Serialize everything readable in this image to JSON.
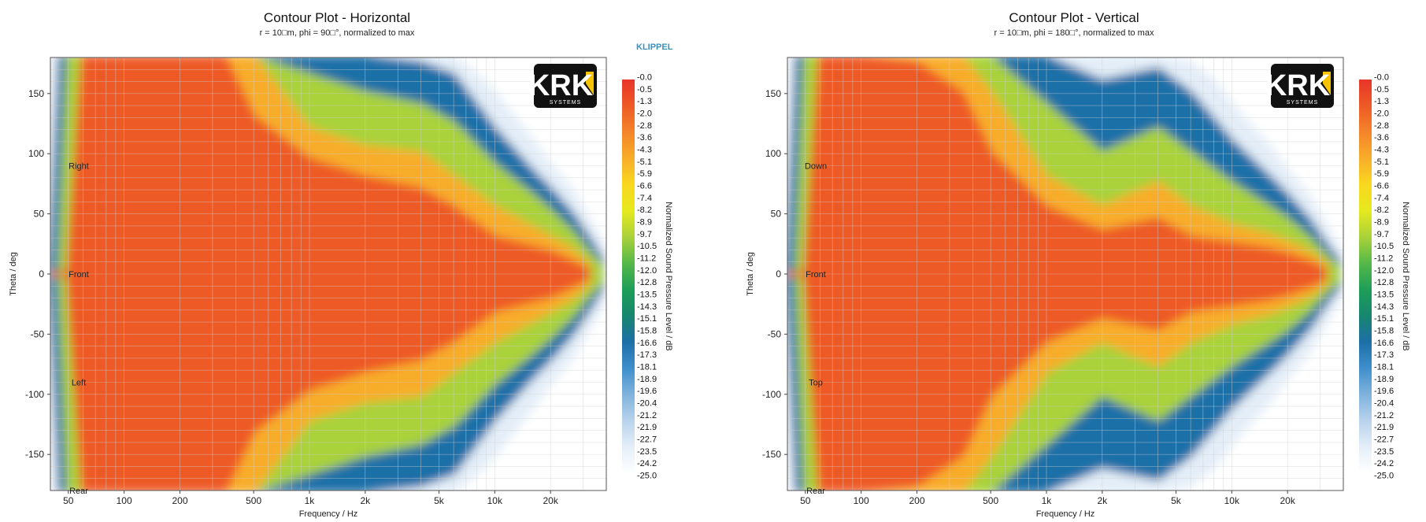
{
  "klippel_label": "KLIPPEL",
  "colors": {
    "scale": [
      "#e8342a",
      "#ee5a26",
      "#f5842a",
      "#f8ad2a",
      "#f9d81f",
      "#e6e81e",
      "#a9d23a",
      "#55b848",
      "#1f9e58",
      "#17866e",
      "#1d6fa8",
      "#3f8fcc",
      "#7fb2dc",
      "#b8d3ec",
      "#e4eef8",
      "#ffffff"
    ]
  },
  "logo": {
    "brand": "KRK",
    "sub": "SYSTEMS"
  },
  "chart_data": [
    {
      "type": "heatmap",
      "title": "Contour Plot - Horizontal",
      "subtitle": "r = 10□m, phi = 90□°, normalized to max",
      "xlabel": "Frequency / Hz",
      "ylabel": "Theta / deg",
      "colorbar_label": "Normalized Sound Pressure Level / dB",
      "x_scale": "log",
      "xlim": [
        40,
        40000
      ],
      "ylim": [
        -180,
        180
      ],
      "x_ticks": [
        50,
        100,
        200,
        500,
        1000,
        2000,
        5000,
        10000,
        20000
      ],
      "x_tick_labels": [
        "50",
        "100",
        "200",
        "500",
        "1k",
        "2k",
        "5k",
        "10k",
        "20k"
      ],
      "y_ticks": [
        150,
        100,
        50,
        0,
        -50,
        -100,
        -150
      ],
      "y_tick_labels": [
        "150",
        "100",
        "50",
        "0",
        "-50",
        "-100",
        "-150"
      ],
      "direction_labels": [
        {
          "text": "Right",
          "theta": 90
        },
        {
          "text": "Front",
          "theta": 0
        },
        {
          "text": "Left",
          "theta": -90
        },
        {
          "text": "Rear",
          "theta": -180
        }
      ],
      "colorbar_ticks": [
        "-0.0",
        "-0.5",
        "-1.3",
        "-2.0",
        "-2.8",
        "-3.6",
        "-4.3",
        "-5.1",
        "-5.9",
        "-6.6",
        "-7.4",
        "-8.2",
        "-8.9",
        "-9.7",
        "-10.5",
        "-11.2",
        "-12.0",
        "-12.8",
        "-13.5",
        "-14.3",
        "-15.1",
        "-15.8",
        "-16.6",
        "-17.3",
        "-18.1",
        "-18.9",
        "-19.6",
        "-20.4",
        "-21.2",
        "-21.9",
        "-22.7",
        "-23.5",
        "-24.2",
        "-25.0"
      ],
      "zlim": [
        -25,
        0
      ],
      "beamwidth_contours": [
        {
          "level": -3,
          "x": [
            40,
            45,
            50,
            60,
            70,
            100,
            200,
            350,
            500,
            1000,
            2000,
            4000,
            6000,
            10000,
            16000,
            20000,
            26000,
            32000
          ],
          "theta_halfwidth": [
            0,
            0,
            0,
            180,
            180,
            180,
            180,
            180,
            130,
            95,
            80,
            70,
            55,
            30,
            22,
            18,
            10,
            3
          ]
        },
        {
          "level": -6,
          "x": [
            40,
            45,
            50,
            60,
            70,
            100,
            200,
            350,
            500,
            1000,
            2000,
            4000,
            6000,
            10000,
            16000,
            20000,
            26000,
            32000
          ],
          "theta_halfwidth": [
            0,
            0,
            0,
            180,
            180,
            180,
            180,
            180,
            180,
            120,
            105,
            100,
            80,
            55,
            38,
            30,
            20,
            8
          ]
        },
        {
          "level": -12,
          "x": [
            40,
            45,
            50,
            60,
            70,
            100,
            200,
            350,
            500,
            1000,
            2000,
            4000,
            6000,
            10000,
            16000,
            20000,
            26000,
            32000,
            38000
          ],
          "theta_halfwidth": [
            0,
            0,
            180,
            180,
            180,
            180,
            180,
            180,
            180,
            165,
            150,
            140,
            125,
            90,
            65,
            52,
            35,
            18,
            6
          ]
        },
        {
          "level": -18,
          "x": [
            40,
            45,
            50,
            60,
            70,
            100,
            200,
            350,
            500,
            1000,
            2000,
            4000,
            6000,
            10000,
            16000,
            20000,
            26000,
            32000,
            38000
          ],
          "theta_halfwidth": [
            0,
            180,
            180,
            180,
            180,
            180,
            180,
            180,
            180,
            180,
            180,
            175,
            165,
            120,
            85,
            70,
            50,
            30,
            12
          ]
        },
        {
          "level": -24,
          "x": [
            40,
            42,
            45,
            50,
            60,
            100,
            200,
            350,
            500,
            1000,
            2000,
            4000,
            6000,
            8000,
            10000,
            16000,
            20000,
            26000,
            32000,
            38000
          ],
          "theta_halfwidth": [
            0,
            180,
            180,
            180,
            180,
            180,
            180,
            180,
            180,
            180,
            180,
            180,
            180,
            165,
            150,
            110,
            90,
            70,
            45,
            25
          ]
        }
      ]
    },
    {
      "type": "heatmap",
      "title": "Contour Plot - Vertical",
      "subtitle": "r = 10□m, phi = 180□°, normalized to max",
      "xlabel": "Frequency / Hz",
      "ylabel": "Theta / deg",
      "colorbar_label": "Normalized Sound Pressure Level / dB",
      "x_scale": "log",
      "xlim": [
        40,
        40000
      ],
      "ylim": [
        -180,
        180
      ],
      "x_ticks": [
        50,
        100,
        200,
        500,
        1000,
        2000,
        5000,
        10000,
        20000
      ],
      "x_tick_labels": [
        "50",
        "100",
        "200",
        "500",
        "1k",
        "2k",
        "5k",
        "10k",
        "20k"
      ],
      "y_ticks": [
        150,
        100,
        50,
        0,
        -50,
        -100,
        -150
      ],
      "y_tick_labels": [
        "150",
        "100",
        "50",
        "0",
        "-50",
        "-100",
        "-150"
      ],
      "direction_labels": [
        {
          "text": "Down",
          "theta": 90
        },
        {
          "text": "Front",
          "theta": 0
        },
        {
          "text": "Top",
          "theta": -90
        },
        {
          "text": "Rear",
          "theta": -180
        }
      ],
      "colorbar_ticks": [
        "-0.0",
        "-0.5",
        "-1.3",
        "-2.0",
        "-2.8",
        "-3.6",
        "-4.3",
        "-5.1",
        "-5.9",
        "-6.6",
        "-7.4",
        "-8.2",
        "-8.9",
        "-9.7",
        "-10.5",
        "-11.2",
        "-12.0",
        "-12.8",
        "-13.5",
        "-14.3",
        "-15.1",
        "-15.8",
        "-16.6",
        "-17.3",
        "-18.1",
        "-18.9",
        "-19.6",
        "-20.4",
        "-21.2",
        "-21.9",
        "-22.7",
        "-23.5",
        "-24.2",
        "-25.0"
      ],
      "zlim": [
        -25,
        0
      ],
      "beamwidth_contours": [
        {
          "level": -3,
          "x": [
            40,
            45,
            50,
            60,
            70,
            100,
            200,
            350,
            500,
            1000,
            2000,
            4000,
            6000,
            10000,
            16000,
            20000,
            26000,
            32000
          ],
          "theta_halfwidth": [
            0,
            0,
            0,
            180,
            180,
            180,
            175,
            150,
            100,
            55,
            35,
            45,
            30,
            25,
            20,
            16,
            10,
            3
          ]
        },
        {
          "level": -6,
          "x": [
            40,
            45,
            50,
            60,
            70,
            100,
            200,
            350,
            500,
            1000,
            2000,
            4000,
            6000,
            10000,
            16000,
            20000,
            26000,
            32000
          ],
          "theta_halfwidth": [
            0,
            0,
            0,
            180,
            180,
            180,
            180,
            180,
            150,
            80,
            55,
            75,
            55,
            40,
            32,
            26,
            18,
            8
          ]
        },
        {
          "level": -12,
          "x": [
            40,
            45,
            50,
            60,
            70,
            100,
            200,
            350,
            500,
            1000,
            2000,
            4000,
            6000,
            10000,
            16000,
            20000,
            26000,
            32000,
            38000
          ],
          "theta_halfwidth": [
            0,
            0,
            180,
            180,
            180,
            180,
            180,
            180,
            180,
            140,
            100,
            120,
            100,
            75,
            55,
            45,
            30,
            15,
            5
          ]
        },
        {
          "level": -18,
          "x": [
            40,
            45,
            50,
            60,
            70,
            100,
            200,
            350,
            500,
            1000,
            2000,
            4000,
            6000,
            10000,
            16000,
            20000,
            26000,
            32000,
            38000
          ],
          "theta_halfwidth": [
            0,
            180,
            180,
            180,
            180,
            180,
            180,
            180,
            180,
            180,
            160,
            170,
            150,
            110,
            80,
            65,
            45,
            25,
            10
          ]
        },
        {
          "level": -24,
          "x": [
            40,
            42,
            45,
            50,
            60,
            100,
            200,
            350,
            500,
            1000,
            2000,
            4000,
            6000,
            8000,
            10000,
            16000,
            20000,
            26000,
            32000,
            38000
          ],
          "theta_halfwidth": [
            0,
            180,
            180,
            180,
            180,
            180,
            180,
            180,
            180,
            180,
            180,
            180,
            175,
            160,
            140,
            105,
            85,
            65,
            40,
            20
          ]
        }
      ]
    }
  ]
}
